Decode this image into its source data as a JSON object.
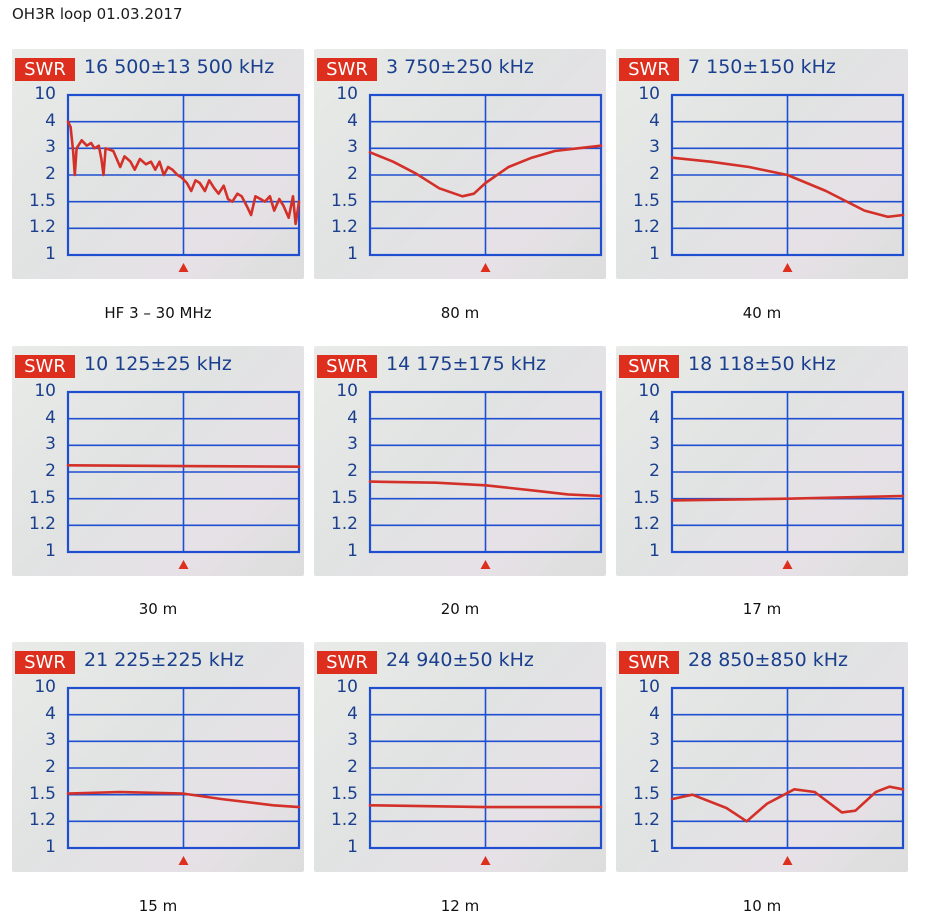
{
  "page_title": "OH3R loop 01.03.2017",
  "badge_label": "SWR",
  "colors": {
    "badge": "#de2e1e",
    "grid": "#1f4fd0",
    "trace": "#d4302a",
    "label_text": "#1a3f8e",
    "marker": "#de2e1e"
  },
  "y_tick_labels": [
    "10",
    "4",
    "3",
    "2",
    "1.5",
    "1.2",
    "1"
  ],
  "panels": [
    {
      "span": "16 500±13 500 kHz",
      "caption": "HF 3 – 30 MHz"
    },
    {
      "span": "3 750±250 kHz",
      "caption": "80 m"
    },
    {
      "span": "7 150±150 kHz",
      "caption": "40 m"
    },
    {
      "span": "10 125±25 kHz",
      "caption": "30 m"
    },
    {
      "span": "14 175±175 kHz",
      "caption": "20 m"
    },
    {
      "span": "18 118±50 kHz",
      "caption": "17 m"
    },
    {
      "span": "21 225±225 kHz",
      "caption": "15 m"
    },
    {
      "span": "24 940±50 kHz",
      "caption": "12 m"
    },
    {
      "span": "28 850±850 kHz",
      "caption": "10 m"
    }
  ],
  "chart_data": [
    {
      "type": "line",
      "title": "HF 3 – 30 MHz",
      "x_unit": "kHz",
      "xlim": [
        3000,
        30000
      ],
      "y_unit": "SWR",
      "y_scale": "swr-compressed",
      "ylim": [
        1,
        10
      ],
      "y_ticks": [
        10,
        4,
        3,
        2,
        1.5,
        1.2,
        1
      ],
      "grid": true,
      "center_marker": true,
      "series": [
        {
          "values": [
            [
              3000,
              4.0
            ],
            [
              3300,
              3.8
            ],
            [
              3600,
              2.9
            ],
            [
              3800,
              2.0
            ],
            [
              4000,
              3.0
            ],
            [
              4600,
              3.3
            ],
            [
              5200,
              3.1
            ],
            [
              5700,
              3.2
            ],
            [
              6100,
              3.0
            ],
            [
              6600,
              3.1
            ],
            [
              6900,
              2.6
            ],
            [
              7150,
              2.0
            ],
            [
              7400,
              3.0
            ],
            [
              8300,
              2.9
            ],
            [
              9100,
              2.3
            ],
            [
              9600,
              2.7
            ],
            [
              10300,
              2.5
            ],
            [
              10800,
              2.2
            ],
            [
              11400,
              2.6
            ],
            [
              12100,
              2.4
            ],
            [
              12700,
              2.5
            ],
            [
              13200,
              2.2
            ],
            [
              13700,
              2.5
            ],
            [
              14200,
              2.0
            ],
            [
              14700,
              2.3
            ],
            [
              15200,
              2.2
            ],
            [
              15800,
              2.0
            ],
            [
              16300,
              1.95
            ],
            [
              16900,
              1.85
            ],
            [
              17400,
              1.7
            ],
            [
              17900,
              1.9
            ],
            [
              18400,
              1.85
            ],
            [
              19000,
              1.7
            ],
            [
              19500,
              1.9
            ],
            [
              20100,
              1.75
            ],
            [
              20600,
              1.65
            ],
            [
              21200,
              1.8
            ],
            [
              21700,
              1.55
            ],
            [
              22200,
              1.5
            ],
            [
              22800,
              1.65
            ],
            [
              23300,
              1.6
            ],
            [
              23900,
              1.45
            ],
            [
              24400,
              1.35
            ],
            [
              24900,
              1.6
            ],
            [
              25500,
              1.55
            ],
            [
              26000,
              1.5
            ],
            [
              26600,
              1.6
            ],
            [
              27100,
              1.4
            ],
            [
              27700,
              1.55
            ],
            [
              28200,
              1.45
            ],
            [
              28800,
              1.32
            ],
            [
              29300,
              1.6
            ],
            [
              29600,
              1.25
            ],
            [
              30000,
              1.5
            ]
          ]
        }
      ]
    },
    {
      "type": "line",
      "title": "80 m",
      "x_unit": "kHz",
      "xlim": [
        3500,
        4000
      ],
      "y_unit": "SWR",
      "y_scale": "swr-compressed",
      "ylim": [
        1,
        10
      ],
      "y_ticks": [
        10,
        4,
        3,
        2,
        1.5,
        1.2,
        1
      ],
      "grid": true,
      "center_marker": true,
      "series": [
        {
          "values": [
            [
              3500,
              2.85
            ],
            [
              3550,
              2.5
            ],
            [
              3600,
              2.05
            ],
            [
              3650,
              1.75
            ],
            [
              3700,
              1.6
            ],
            [
              3725,
              1.65
            ],
            [
              3750,
              1.85
            ],
            [
              3800,
              2.3
            ],
            [
              3850,
              2.65
            ],
            [
              3900,
              2.9
            ],
            [
              3950,
              3.0
            ],
            [
              4000,
              3.1
            ]
          ]
        }
      ]
    },
    {
      "type": "line",
      "title": "40 m",
      "x_unit": "kHz",
      "xlim": [
        7000,
        7300
      ],
      "y_unit": "SWR",
      "y_scale": "swr-compressed",
      "ylim": [
        1,
        10
      ],
      "y_ticks": [
        10,
        4,
        3,
        2,
        1.5,
        1.2,
        1
      ],
      "grid": true,
      "center_marker": true,
      "series": [
        {
          "values": [
            [
              7000,
              2.65
            ],
            [
              7050,
              2.5
            ],
            [
              7100,
              2.3
            ],
            [
              7150,
              2.0
            ],
            [
              7200,
              1.7
            ],
            [
              7250,
              1.4
            ],
            [
              7280,
              1.33
            ],
            [
              7300,
              1.35
            ]
          ]
        }
      ]
    },
    {
      "type": "line",
      "title": "30 m",
      "x_unit": "kHz",
      "xlim": [
        10100,
        10150
      ],
      "y_unit": "SWR",
      "y_scale": "swr-compressed",
      "ylim": [
        1,
        10
      ],
      "y_ticks": [
        10,
        4,
        3,
        2,
        1.5,
        1.2,
        1
      ],
      "grid": true,
      "center_marker": true,
      "series": [
        {
          "values": [
            [
              10100,
              2.25
            ],
            [
              10125,
              2.22
            ],
            [
              10150,
              2.2
            ]
          ]
        }
      ]
    },
    {
      "type": "line",
      "title": "20 m",
      "x_unit": "kHz",
      "xlim": [
        14000,
        14350
      ],
      "y_unit": "SWR",
      "y_scale": "swr-compressed",
      "ylim": [
        1,
        10
      ],
      "y_ticks": [
        10,
        4,
        3,
        2,
        1.5,
        1.2,
        1
      ],
      "grid": true,
      "center_marker": true,
      "series": [
        {
          "values": [
            [
              14000,
              1.82
            ],
            [
              14100,
              1.8
            ],
            [
              14175,
              1.75
            ],
            [
              14250,
              1.65
            ],
            [
              14300,
              1.58
            ],
            [
              14350,
              1.55
            ]
          ]
        }
      ]
    },
    {
      "type": "line",
      "title": "17 m",
      "x_unit": "kHz",
      "xlim": [
        18068,
        18168
      ],
      "y_unit": "SWR",
      "y_scale": "swr-compressed",
      "ylim": [
        1,
        10
      ],
      "y_ticks": [
        10,
        4,
        3,
        2,
        1.5,
        1.2,
        1
      ],
      "grid": true,
      "center_marker": true,
      "series": [
        {
          "values": [
            [
              18068,
              1.48
            ],
            [
              18118,
              1.5
            ],
            [
              18168,
              1.55
            ]
          ]
        }
      ]
    },
    {
      "type": "line",
      "title": "15 m",
      "x_unit": "kHz",
      "xlim": [
        21000,
        21450
      ],
      "y_unit": "SWR",
      "y_scale": "swr-compressed",
      "ylim": [
        1,
        10
      ],
      "y_ticks": [
        10,
        4,
        3,
        2,
        1.5,
        1.2,
        1
      ],
      "grid": true,
      "center_marker": true,
      "series": [
        {
          "values": [
            [
              21000,
              1.52
            ],
            [
              21100,
              1.55
            ],
            [
              21225,
              1.52
            ],
            [
              21300,
              1.45
            ],
            [
              21400,
              1.38
            ],
            [
              21450,
              1.36
            ]
          ]
        }
      ]
    },
    {
      "type": "line",
      "title": "12 m",
      "x_unit": "kHz",
      "xlim": [
        24890,
        24990
      ],
      "y_unit": "SWR",
      "y_scale": "swr-compressed",
      "ylim": [
        1,
        10
      ],
      "y_ticks": [
        10,
        4,
        3,
        2,
        1.5,
        1.2,
        1
      ],
      "grid": true,
      "center_marker": true,
      "series": [
        {
          "values": [
            [
              24890,
              1.38
            ],
            [
              24940,
              1.36
            ],
            [
              24990,
              1.36
            ]
          ]
        }
      ]
    },
    {
      "type": "line",
      "title": "10 m",
      "x_unit": "kHz",
      "xlim": [
        28000,
        29700
      ],
      "y_unit": "SWR",
      "y_scale": "swr-compressed",
      "ylim": [
        1,
        10
      ],
      "y_ticks": [
        10,
        4,
        3,
        2,
        1.5,
        1.2,
        1
      ],
      "grid": true,
      "center_marker": true,
      "series": [
        {
          "values": [
            [
              28000,
              1.45
            ],
            [
              28150,
              1.5
            ],
            [
              28400,
              1.35
            ],
            [
              28550,
              1.2
            ],
            [
              28700,
              1.4
            ],
            [
              28900,
              1.6
            ],
            [
              29050,
              1.55
            ],
            [
              29250,
              1.3
            ],
            [
              29350,
              1.32
            ],
            [
              29500,
              1.55
            ],
            [
              29600,
              1.65
            ],
            [
              29700,
              1.6
            ]
          ]
        }
      ]
    }
  ]
}
